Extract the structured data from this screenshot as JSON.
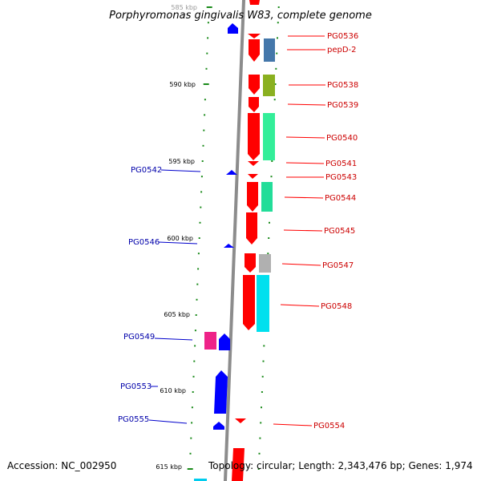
{
  "title": "Porphyromonas gingivalis W83, complete genome",
  "footer": {
    "accession": "Accession: NC_002950",
    "summary": "Topology: circular; Length: 2,343,476 bp; Genes: 1,974"
  },
  "ruler": {
    "unit": "kbp",
    "ticks": [
      "585 kbp",
      "590 kbp",
      "595 kbp",
      "600 kbp",
      "605 kbp",
      "610 kbp",
      "615 kbp"
    ]
  },
  "colors": {
    "background": "#ffffff",
    "backbone": "#8c8c8c",
    "tick": "#1a8a1a",
    "forward_gene": "#ff0000",
    "forward_label": "#cc0000",
    "reverse_gene": "#0000ff",
    "reverse_label": "#0000aa",
    "pg0538_cog": "#8ab020",
    "pg0540_cog": "#33ee99",
    "pg0544_cog": "#22dd99",
    "pg0547_cog": "#b0b0b0",
    "pg0548_cog": "#00e0ee",
    "pg0549_cog": "#ee2288",
    "pepd_cog": "#4477aa"
  },
  "labels": {
    "right": [
      "PG0536",
      "pepD-2",
      "PG0538",
      "PG0539",
      "PG0540",
      "PG0541",
      "PG0543",
      "PG0544",
      "PG0545",
      "PG0547",
      "PG0548",
      "PG0554"
    ],
    "left": [
      "PG0542",
      "PG0546",
      "PG0549",
      "PG0553",
      "PG0555"
    ]
  }
}
